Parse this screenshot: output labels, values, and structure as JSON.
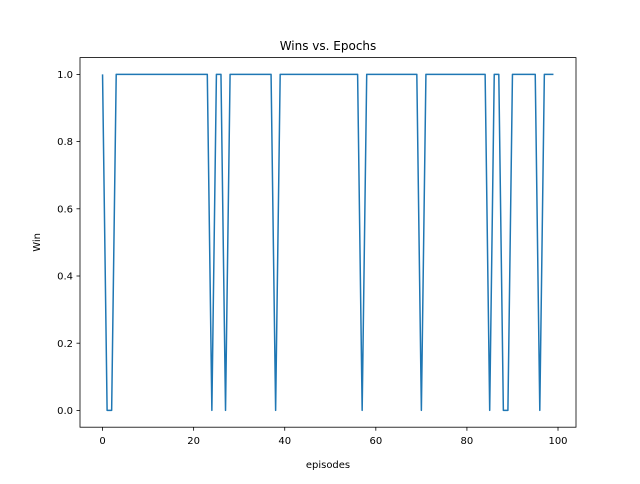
{
  "chart_data": {
    "type": "line",
    "title": "Wins vs. Epochs",
    "xlabel": "episodes",
    "ylabel": "Win",
    "xlim": [
      -4.95,
      103.95
    ],
    "ylim": [
      -0.05,
      1.05
    ],
    "x_ticks": [
      0,
      20,
      40,
      60,
      80,
      100
    ],
    "y_ticks": [
      0.0,
      0.2,
      0.4,
      0.6,
      0.8,
      1.0
    ],
    "x_tick_labels": [
      "0",
      "20",
      "40",
      "60",
      "80",
      "100"
    ],
    "y_tick_labels": [
      "0.0",
      "0.2",
      "0.4",
      "0.6",
      "0.8",
      "1.0"
    ],
    "grid": false,
    "series": [
      {
        "color": "#1f77b4",
        "x": [
          0,
          1,
          2,
          3,
          4,
          5,
          6,
          7,
          8,
          9,
          10,
          11,
          12,
          13,
          14,
          15,
          16,
          17,
          18,
          19,
          20,
          21,
          22,
          23,
          24,
          25,
          26,
          27,
          28,
          29,
          30,
          31,
          32,
          33,
          34,
          35,
          36,
          37,
          38,
          39,
          40,
          41,
          42,
          43,
          44,
          45,
          46,
          47,
          48,
          49,
          50,
          51,
          52,
          53,
          54,
          55,
          56,
          57,
          58,
          59,
          60,
          61,
          62,
          63,
          64,
          65,
          66,
          67,
          68,
          69,
          70,
          71,
          72,
          73,
          74,
          75,
          76,
          77,
          78,
          79,
          80,
          81,
          82,
          83,
          84,
          85,
          86,
          87,
          88,
          89,
          90,
          91,
          92,
          93,
          94,
          95,
          96,
          97,
          98,
          99
        ],
        "values": [
          1,
          0,
          0,
          1,
          1,
          1,
          1,
          1,
          1,
          1,
          1,
          1,
          1,
          1,
          1,
          1,
          1,
          1,
          1,
          1,
          1,
          1,
          1,
          1,
          0,
          1,
          1,
          0,
          1,
          1,
          1,
          1,
          1,
          1,
          1,
          1,
          1,
          1,
          0,
          1,
          1,
          1,
          1,
          1,
          1,
          1,
          1,
          1,
          1,
          1,
          1,
          1,
          1,
          1,
          1,
          1,
          1,
          0,
          1,
          1,
          1,
          1,
          1,
          1,
          1,
          1,
          1,
          1,
          1,
          1,
          0,
          1,
          1,
          1,
          1,
          1,
          1,
          1,
          1,
          1,
          1,
          1,
          1,
          1,
          1,
          0,
          1,
          1,
          0,
          0,
          1,
          1,
          1,
          1,
          1,
          1,
          0,
          1,
          1,
          1
        ]
      }
    ]
  }
}
